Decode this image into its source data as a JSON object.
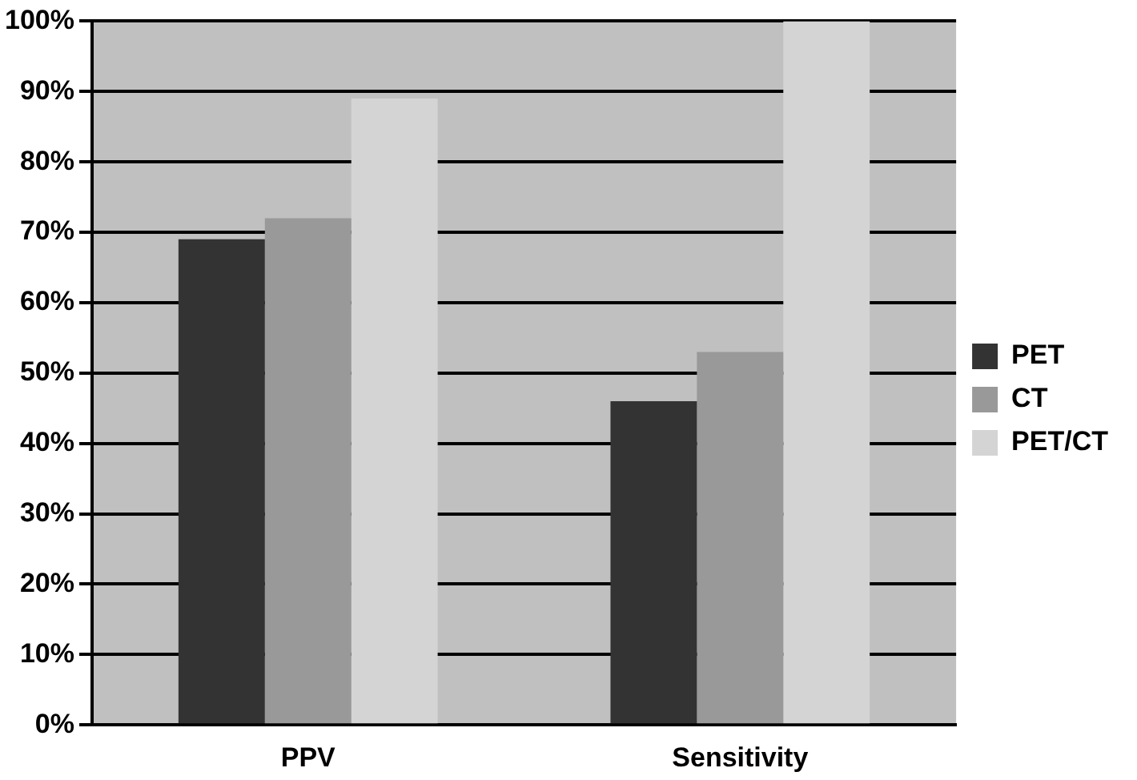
{
  "chart_data": {
    "type": "bar",
    "categories": [
      "PPV",
      "Sensitivity"
    ],
    "series": [
      {
        "name": "PET",
        "color": "#333333",
        "values": [
          69,
          46
        ]
      },
      {
        "name": "CT",
        "color": "#999999",
        "values": [
          72,
          53
        ]
      },
      {
        "name": "PET/CT",
        "color": "#d4d4d4",
        "values": [
          89,
          100
        ]
      }
    ],
    "ylim": [
      0,
      100
    ],
    "yticks": [
      {
        "value": 0,
        "label": "0%"
      },
      {
        "value": 10,
        "label": "10%"
      },
      {
        "value": 20,
        "label": "20%"
      },
      {
        "value": 30,
        "label": "30%"
      },
      {
        "value": 40,
        "label": "40%"
      },
      {
        "value": 50,
        "label": "50%"
      },
      {
        "value": 60,
        "label": "60%"
      },
      {
        "value": 70,
        "label": "70%"
      },
      {
        "value": 80,
        "label": "80%"
      },
      {
        "value": 90,
        "label": "90%"
      },
      {
        "value": 100,
        "label": "100%"
      }
    ],
    "grid": "y",
    "legend": "right"
  }
}
